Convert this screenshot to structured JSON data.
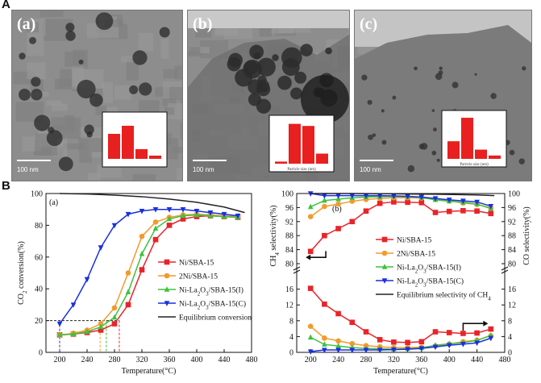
{
  "panel_A": {
    "letter": "A",
    "images": [
      {
        "label": "(a)",
        "scale": "100 nm",
        "hist_values": [
          0.62,
          0.82,
          0.24,
          0.08
        ],
        "hist_xlabel": ""
      },
      {
        "label": "(b)",
        "scale": "100 nm",
        "hist_values": [
          0.05,
          0.95,
          0.9,
          0.24
        ],
        "hist_xlabel": "Particle size (nm)"
      },
      {
        "label": "(c)",
        "scale": "100 nm",
        "hist_values": [
          0.42,
          0.98,
          0.22,
          0.08
        ],
        "hist_xlabel": "Particle size (nm)"
      }
    ]
  },
  "panel_B": {
    "letter": "B"
  },
  "chart_data": [
    {
      "type": "line",
      "panel": "(a)",
      "xlabel": "Temperature(°C)",
      "ylabel": "CO2 conversion(%)",
      "xlim": [
        180,
        480
      ],
      "ylim": [
        0,
        100
      ],
      "xticks": [
        200,
        240,
        280,
        320,
        360,
        400,
        440,
        480
      ],
      "yticks": [
        0,
        20,
        40,
        60,
        80,
        100
      ],
      "legend_position": "center-right",
      "series": [
        {
          "name": "Ni/SBA-15",
          "color": "#e8242a",
          "marker": "square",
          "x": [
            200,
            220,
            240,
            260,
            280,
            300,
            320,
            340,
            360,
            380,
            400,
            420,
            440,
            460
          ],
          "y": [
            11,
            11.5,
            12.5,
            14,
            18,
            30,
            52,
            71,
            80,
            84,
            85.5,
            86,
            85.5,
            85
          ]
        },
        {
          "name": "2Ni/SBA-15",
          "color": "#f39a2e",
          "marker": "circle",
          "x": [
            200,
            220,
            240,
            260,
            280,
            300,
            320,
            340,
            360,
            380,
            400,
            420,
            440,
            460
          ],
          "y": [
            11,
            12,
            14,
            18,
            28,
            50,
            73,
            82,
            85,
            86.5,
            87,
            86.5,
            86,
            85.5
          ]
        },
        {
          "name": "Ni-La2O3/SBA-15(I)",
          "color": "#3ec23e",
          "marker": "triangle-up",
          "x": [
            200,
            220,
            240,
            260,
            280,
            300,
            320,
            340,
            360,
            380,
            400,
            420,
            440,
            460
          ],
          "y": [
            11,
            11.5,
            13,
            16,
            22,
            38,
            62,
            78,
            84,
            86,
            86.5,
            86,
            85.5,
            85
          ]
        },
        {
          "name": "Ni-La2O3/SBA-15(C)",
          "color": "#1a2fe0",
          "marker": "triangle-down",
          "x": [
            200,
            220,
            240,
            260,
            280,
            300,
            320,
            340,
            360,
            380,
            400,
            420,
            440,
            460
          ],
          "y": [
            18,
            30,
            46,
            66,
            80,
            87,
            89,
            90,
            90,
            90,
            89,
            88,
            87,
            86
          ]
        },
        {
          "name": "Equilibrium conversion",
          "color": "#222222",
          "marker": "none",
          "x": [
            200,
            240,
            280,
            320,
            360,
            400,
            440,
            470
          ],
          "y": [
            100,
            99.7,
            99,
            98,
            96.5,
            94.5,
            91.5,
            88
          ]
        }
      ],
      "guide_lines": [
        {
          "x": 200,
          "y": 20,
          "color": "#1a2fe0"
        },
        {
          "x": 259,
          "y": 20,
          "color": "#f39a2e"
        },
        {
          "x": 268,
          "y": 20,
          "color": "#3ec23e"
        },
        {
          "x": 287,
          "y": 20,
          "color": "#e8242a"
        }
      ]
    },
    {
      "type": "line",
      "panel": "(b)",
      "xlabel": "Temperature(°C)",
      "ylabel_left": "CH4 selectivity(%)",
      "ylabel_right": "CO selectivity(%)",
      "xlim": [
        180,
        480
      ],
      "xticks": [
        200,
        240,
        280,
        320,
        360,
        400,
        440,
        480
      ],
      "ch4_ylim": [
        80,
        100
      ],
      "ch4_yticks": [
        80,
        84,
        88,
        92,
        96,
        100
      ],
      "co_ylim": [
        0,
        20
      ],
      "co_yticks": [
        0,
        4,
        8,
        12,
        16
      ],
      "right_upper_ticks": [
        80,
        84,
        88,
        92,
        96,
        100
      ],
      "legend_position": "center",
      "ch4_selectivity": [
        {
          "name": "Ni/SBA-15",
          "color": "#e8242a",
          "marker": "square",
          "x": [
            200,
            220,
            240,
            260,
            280,
            300,
            320,
            340,
            360,
            380,
            400,
            420,
            440,
            460
          ],
          "y": [
            83.5,
            88,
            90,
            92,
            95,
            97.2,
            97.6,
            97.5,
            97.4,
            94.6,
            94.9,
            95.1,
            95.0,
            94.3
          ]
        },
        {
          "name": "2Ni/SBA-15",
          "color": "#f39a2e",
          "marker": "circle",
          "x": [
            200,
            220,
            240,
            260,
            280,
            300,
            320,
            340,
            360,
            380,
            400,
            420,
            440,
            460
          ],
          "y": [
            93.4,
            96.3,
            97.0,
            97.8,
            98.3,
            98.6,
            98.8,
            98.8,
            98.7,
            98.4,
            97.9,
            97.3,
            96.9,
            95.9
          ]
        },
        {
          "name": "Ni-La2O3/SBA-15(I)",
          "color": "#3ec23e",
          "marker": "triangle-up",
          "x": [
            200,
            220,
            240,
            260,
            280,
            300,
            320,
            340,
            360,
            380,
            400,
            420,
            440,
            460
          ],
          "y": [
            96.2,
            98.0,
            98.4,
            98.8,
            99.0,
            99.1,
            99.2,
            99.1,
            98.9,
            98.2,
            97.8,
            97.5,
            97.0,
            95.7
          ]
        },
        {
          "name": "Ni-La2O3/SBA-15(C)",
          "color": "#1a2fe0",
          "marker": "triangle-down",
          "x": [
            200,
            220,
            240,
            260,
            280,
            300,
            320,
            340,
            360,
            380,
            400,
            420,
            440,
            460
          ],
          "y": [
            100,
            99.4,
            99.4,
            99.4,
            99.4,
            99.4,
            99.3,
            99.2,
            99.0,
            98.6,
            98.2,
            97.9,
            97.6,
            96.4
          ]
        },
        {
          "name": "Equilibrium selectivity of CH4",
          "color": "#222222",
          "marker": "none",
          "x": [
            200,
            260,
            320,
            380,
            440,
            465
          ],
          "y": [
            100,
            100,
            99.9,
            99.8,
            99.6,
            99.4
          ]
        }
      ],
      "co_selectivity": [
        {
          "name": "Ni/SBA-15",
          "color": "#e8242a",
          "marker": "square",
          "x": [
            200,
            220,
            240,
            260,
            280,
            300,
            320,
            340,
            360,
            380,
            400,
            420,
            440,
            460
          ],
          "y": [
            16.2,
            12.2,
            9.8,
            7.6,
            5.2,
            3.2,
            2.6,
            2.5,
            2.7,
            5.2,
            5.0,
            4.8,
            4.9,
            5.9
          ]
        },
        {
          "name": "2Ni/SBA-15",
          "color": "#f39a2e",
          "marker": "circle",
          "x": [
            200,
            220,
            240,
            260,
            280,
            300,
            320,
            340,
            360,
            380,
            400,
            420,
            440,
            460
          ],
          "y": [
            6.6,
            3.6,
            2.9,
            2.2,
            1.7,
            1.4,
            1.2,
            1.2,
            1.3,
            1.6,
            2.1,
            2.7,
            3.1,
            4.2
          ]
        },
        {
          "name": "Ni-La2O3/SBA-15(I)",
          "color": "#3ec23e",
          "marker": "triangle-up",
          "x": [
            200,
            220,
            240,
            260,
            280,
            300,
            320,
            340,
            360,
            380,
            400,
            420,
            440,
            460
          ],
          "y": [
            3.8,
            2.0,
            1.6,
            1.2,
            1.0,
            0.9,
            0.8,
            0.9,
            1.1,
            1.8,
            2.2,
            2.5,
            3.0,
            4.3
          ]
        },
        {
          "name": "Ni-La2O3/SBA-15(C)",
          "color": "#1a2fe0",
          "marker": "triangle-down",
          "x": [
            200,
            220,
            240,
            260,
            280,
            300,
            320,
            340,
            360,
            380,
            400,
            420,
            440,
            460
          ],
          "y": [
            0.2,
            0.6,
            0.6,
            0.6,
            0.6,
            0.6,
            0.7,
            0.8,
            1.0,
            1.4,
            1.8,
            2.1,
            2.4,
            3.6
          ]
        }
      ]
    }
  ]
}
